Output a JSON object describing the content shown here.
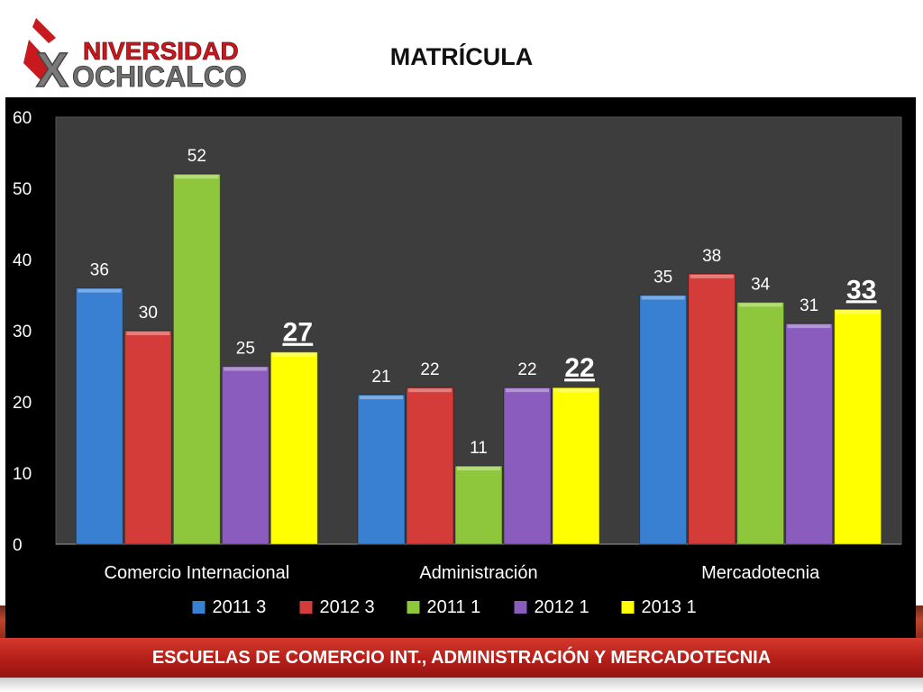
{
  "logo": {
    "line1": "NIVERSIDAD",
    "line2": "OCHICALCO"
  },
  "slide": {
    "title": "MATRÍCULA",
    "footer": "ESCUELAS DE COMERCIO INT., ADMINISTRACIÓN Y MERCADOTECNIA"
  },
  "chart_data": {
    "type": "bar",
    "title": "",
    "xlabel": "",
    "ylabel": "",
    "ylim": [
      0,
      60
    ],
    "yticks": [
      0,
      10,
      20,
      30,
      40,
      50,
      60
    ],
    "grid": false,
    "legend_position": "bottom",
    "categories": [
      "Comercio Internacional",
      "Administración",
      "Mercadotecnia"
    ],
    "series": [
      {
        "name": "2011 3",
        "color": "#3a80d2",
        "values": [
          36,
          21,
          35
        ]
      },
      {
        "name": "2012 3",
        "color": "#d43c3a",
        "values": [
          30,
          22,
          38
        ]
      },
      {
        "name": "2011 1",
        "color": "#8ec63c",
        "values": [
          52,
          11,
          34
        ]
      },
      {
        "name": "2012 1",
        "color": "#8a5cbe",
        "values": [
          25,
          22,
          31
        ]
      },
      {
        "name": "2013 1",
        "color": "#ffff00",
        "values": [
          27,
          22,
          33
        ]
      }
    ],
    "emphasized_series": "2013 1"
  }
}
